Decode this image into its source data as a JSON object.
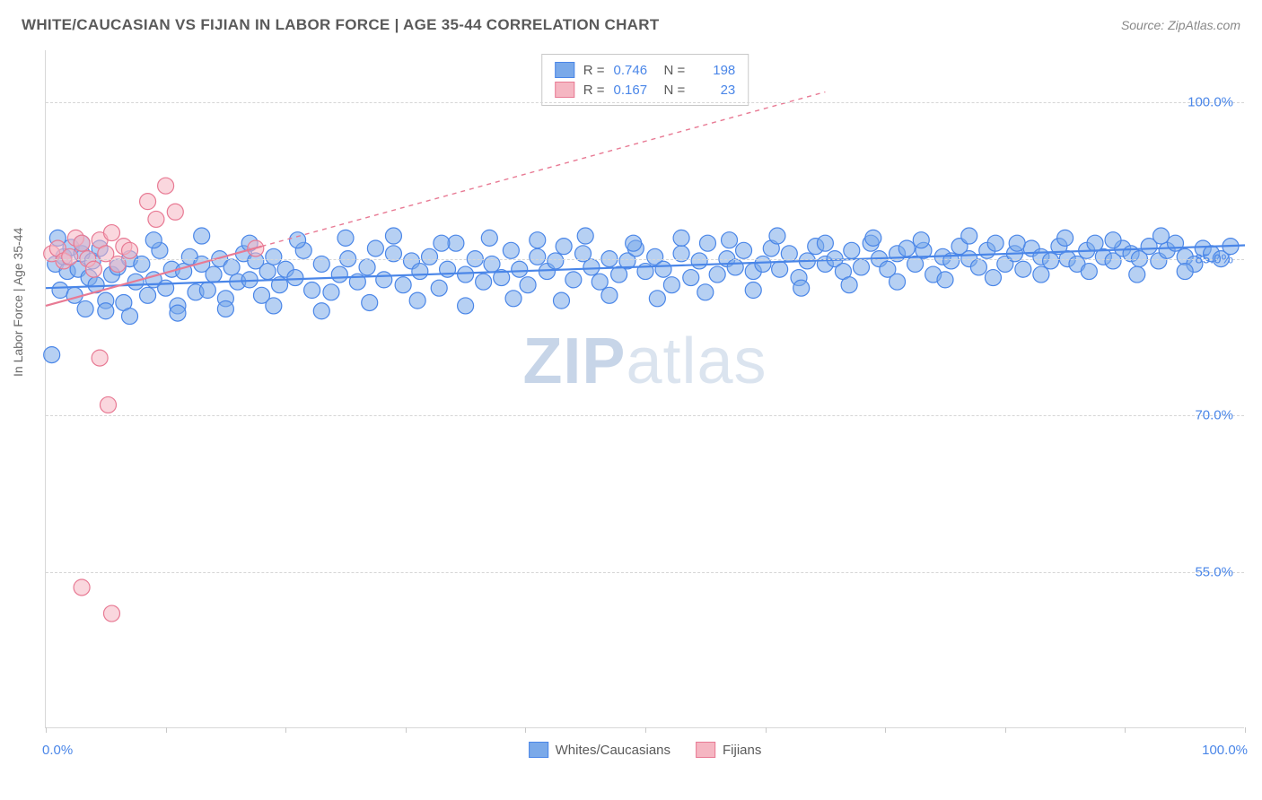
{
  "header": {
    "title": "WHITE/CAUCASIAN VS FIJIAN IN LABOR FORCE | AGE 35-44 CORRELATION CHART",
    "source": "Source: ZipAtlas.com"
  },
  "chart": {
    "type": "scatter",
    "ylabel": "In Labor Force | Age 35-44",
    "xlim": [
      0,
      100
    ],
    "ylim": [
      40,
      105
    ],
    "yticks": [
      {
        "v": 55.0,
        "label": "55.0%"
      },
      {
        "v": 70.0,
        "label": "70.0%"
      },
      {
        "v": 85.0,
        "label": "85.0%"
      },
      {
        "v": 100.0,
        "label": "100.0%"
      }
    ],
    "xtick_positions": [
      0,
      10,
      20,
      30,
      40,
      50,
      60,
      70,
      80,
      90,
      100
    ],
    "xtick_labels": {
      "left": "0.0%",
      "right": "100.0%"
    },
    "grid_color": "#d6d6d6",
    "background_color": "#ffffff",
    "marker_radius": 9,
    "marker_opacity": 0.55,
    "line_width": 2.2,
    "dash_pattern": "5,5",
    "watermark": {
      "bold": "ZIP",
      "rest": "atlas"
    },
    "series": [
      {
        "name": "Whites/Caucasians",
        "color": "#7aa9e9",
        "stroke": "#4a86e8",
        "r": 0.746,
        "n": 198,
        "trend": {
          "x1": 0,
          "y1": 82.2,
          "x2": 100,
          "y2": 86.3
        },
        "points": [
          [
            0.5,
            75.8
          ],
          [
            0.8,
            84.5
          ],
          [
            1.2,
            82.0
          ],
          [
            1.5,
            85.2
          ],
          [
            1.8,
            83.8
          ],
          [
            2.1,
            86.1
          ],
          [
            2.4,
            81.5
          ],
          [
            2.7,
            84.0
          ],
          [
            3.0,
            85.5
          ],
          [
            3.3,
            80.2
          ],
          [
            3.6,
            83.2
          ],
          [
            3.9,
            84.8
          ],
          [
            4.2,
            82.5
          ],
          [
            4.5,
            86.0
          ],
          [
            5.0,
            81.0
          ],
          [
            5.5,
            83.5
          ],
          [
            6.0,
            84.2
          ],
          [
            6.5,
            80.8
          ],
          [
            7.0,
            85.0
          ],
          [
            7.5,
            82.8
          ],
          [
            8.0,
            84.5
          ],
          [
            8.5,
            81.5
          ],
          [
            9.0,
            83.0
          ],
          [
            9.5,
            85.8
          ],
          [
            10.0,
            82.2
          ],
          [
            10.5,
            84.0
          ],
          [
            11.0,
            80.5
          ],
          [
            11.5,
            83.8
          ],
          [
            12.0,
            85.2
          ],
          [
            12.5,
            81.8
          ],
          [
            13.0,
            84.5
          ],
          [
            13.5,
            82.0
          ],
          [
            14.0,
            83.5
          ],
          [
            14.5,
            85.0
          ],
          [
            15.0,
            81.2
          ],
          [
            15.5,
            84.2
          ],
          [
            16.0,
            82.8
          ],
          [
            16.5,
            85.5
          ],
          [
            17.0,
            83.0
          ],
          [
            17.5,
            84.8
          ],
          [
            18.0,
            81.5
          ],
          [
            18.5,
            83.8
          ],
          [
            19.0,
            85.2
          ],
          [
            19.5,
            82.5
          ],
          [
            20.0,
            84.0
          ],
          [
            20.8,
            83.2
          ],
          [
            21.5,
            85.8
          ],
          [
            22.2,
            82.0
          ],
          [
            23.0,
            84.5
          ],
          [
            23.8,
            81.8
          ],
          [
            24.5,
            83.5
          ],
          [
            25.2,
            85.0
          ],
          [
            26.0,
            82.8
          ],
          [
            26.8,
            84.2
          ],
          [
            27.5,
            86.0
          ],
          [
            28.2,
            83.0
          ],
          [
            29.0,
            85.5
          ],
          [
            29.8,
            82.5
          ],
          [
            30.5,
            84.8
          ],
          [
            31.2,
            83.8
          ],
          [
            32.0,
            85.2
          ],
          [
            32.8,
            82.2
          ],
          [
            33.5,
            84.0
          ],
          [
            34.2,
            86.5
          ],
          [
            35.0,
            83.5
          ],
          [
            35.8,
            85.0
          ],
          [
            36.5,
            82.8
          ],
          [
            37.2,
            84.5
          ],
          [
            38.0,
            83.2
          ],
          [
            38.8,
            85.8
          ],
          [
            39.5,
            84.0
          ],
          [
            40.2,
            82.5
          ],
          [
            41.0,
            85.2
          ],
          [
            41.8,
            83.8
          ],
          [
            42.5,
            84.8
          ],
          [
            43.2,
            86.2
          ],
          [
            44.0,
            83.0
          ],
          [
            44.8,
            85.5
          ],
          [
            45.5,
            84.2
          ],
          [
            46.2,
            82.8
          ],
          [
            47.0,
            85.0
          ],
          [
            47.8,
            83.5
          ],
          [
            48.5,
            84.8
          ],
          [
            49.2,
            86.0
          ],
          [
            50.0,
            83.8
          ],
          [
            50.8,
            85.2
          ],
          [
            51.5,
            84.0
          ],
          [
            52.2,
            82.5
          ],
          [
            53.0,
            85.5
          ],
          [
            53.8,
            83.2
          ],
          [
            54.5,
            84.8
          ],
          [
            55.2,
            86.5
          ],
          [
            56.0,
            83.5
          ],
          [
            56.8,
            85.0
          ],
          [
            57.5,
            84.2
          ],
          [
            58.2,
            85.8
          ],
          [
            59.0,
            83.8
          ],
          [
            59.8,
            84.5
          ],
          [
            60.5,
            86.0
          ],
          [
            61.2,
            84.0
          ],
          [
            62.0,
            85.5
          ],
          [
            62.8,
            83.2
          ],
          [
            63.5,
            84.8
          ],
          [
            64.2,
            86.2
          ],
          [
            65.0,
            84.5
          ],
          [
            65.8,
            85.0
          ],
          [
            66.5,
            83.8
          ],
          [
            67.2,
            85.8
          ],
          [
            68.0,
            84.2
          ],
          [
            68.8,
            86.5
          ],
          [
            69.5,
            85.0
          ],
          [
            70.2,
            84.0
          ],
          [
            71.0,
            85.5
          ],
          [
            71.8,
            86.0
          ],
          [
            72.5,
            84.5
          ],
          [
            73.2,
            85.8
          ],
          [
            74.0,
            83.5
          ],
          [
            74.8,
            85.2
          ],
          [
            75.5,
            84.8
          ],
          [
            76.2,
            86.2
          ],
          [
            77.0,
            85.0
          ],
          [
            77.8,
            84.2
          ],
          [
            78.5,
            85.8
          ],
          [
            79.2,
            86.5
          ],
          [
            80.0,
            84.5
          ],
          [
            80.8,
            85.5
          ],
          [
            81.5,
            84.0
          ],
          [
            82.2,
            86.0
          ],
          [
            83.0,
            85.2
          ],
          [
            83.8,
            84.8
          ],
          [
            84.5,
            86.2
          ],
          [
            85.2,
            85.0
          ],
          [
            86.0,
            84.5
          ],
          [
            86.8,
            85.8
          ],
          [
            87.5,
            86.5
          ],
          [
            88.2,
            85.2
          ],
          [
            89.0,
            84.8
          ],
          [
            89.8,
            86.0
          ],
          [
            90.5,
            85.5
          ],
          [
            91.2,
            85.0
          ],
          [
            92.0,
            86.2
          ],
          [
            92.8,
            84.8
          ],
          [
            93.5,
            85.8
          ],
          [
            94.2,
            86.5
          ],
          [
            95.0,
            85.2
          ],
          [
            95.8,
            84.5
          ],
          [
            96.5,
            86.0
          ],
          [
            97.2,
            85.5
          ],
          [
            98.0,
            85.0
          ],
          [
            98.8,
            86.2
          ],
          [
            1.0,
            87.0
          ],
          [
            3.0,
            86.5
          ],
          [
            5.0,
            80.0
          ],
          [
            7.0,
            79.5
          ],
          [
            9.0,
            86.8
          ],
          [
            11.0,
            79.8
          ],
          [
            13.0,
            87.2
          ],
          [
            15.0,
            80.2
          ],
          [
            17.0,
            86.5
          ],
          [
            19.0,
            80.5
          ],
          [
            21.0,
            86.8
          ],
          [
            23.0,
            80.0
          ],
          [
            25.0,
            87.0
          ],
          [
            27.0,
            80.8
          ],
          [
            29.0,
            87.2
          ],
          [
            31.0,
            81.0
          ],
          [
            33.0,
            86.5
          ],
          [
            35.0,
            80.5
          ],
          [
            37.0,
            87.0
          ],
          [
            39.0,
            81.2
          ],
          [
            41.0,
            86.8
          ],
          [
            43.0,
            81.0
          ],
          [
            45.0,
            87.2
          ],
          [
            47.0,
            81.5
          ],
          [
            49.0,
            86.5
          ],
          [
            51.0,
            81.2
          ],
          [
            53.0,
            87.0
          ],
          [
            55.0,
            81.8
          ],
          [
            57.0,
            86.8
          ],
          [
            59.0,
            82.0
          ],
          [
            61.0,
            87.2
          ],
          [
            63.0,
            82.2
          ],
          [
            65.0,
            86.5
          ],
          [
            67.0,
            82.5
          ],
          [
            69.0,
            87.0
          ],
          [
            71.0,
            82.8
          ],
          [
            73.0,
            86.8
          ],
          [
            75.0,
            83.0
          ],
          [
            77.0,
            87.2
          ],
          [
            79.0,
            83.2
          ],
          [
            81.0,
            86.5
          ],
          [
            83.0,
            83.5
          ],
          [
            85.0,
            87.0
          ],
          [
            87.0,
            83.8
          ],
          [
            89.0,
            86.8
          ],
          [
            91.0,
            83.5
          ],
          [
            93.0,
            87.2
          ],
          [
            95.0,
            83.8
          ]
        ]
      },
      {
        "name": "Fijians",
        "color": "#f5b6c2",
        "stroke": "#e87a94",
        "r": 0.167,
        "n": 23,
        "trend": {
          "x1": 0,
          "y1": 80.5,
          "x2": 18,
          "y2": 86.2
        },
        "trend_dash": {
          "x1": 18,
          "y1": 86.2,
          "x2": 65,
          "y2": 101.0
        },
        "points": [
          [
            0.5,
            85.5
          ],
          [
            1.0,
            86.0
          ],
          [
            1.5,
            84.8
          ],
          [
            2.0,
            85.2
          ],
          [
            2.5,
            87.0
          ],
          [
            3.0,
            86.5
          ],
          [
            3.5,
            85.0
          ],
          [
            4.0,
            84.0
          ],
          [
            4.5,
            86.8
          ],
          [
            5.0,
            85.5
          ],
          [
            5.5,
            87.5
          ],
          [
            6.0,
            84.5
          ],
          [
            6.5,
            86.2
          ],
          [
            7.0,
            85.8
          ],
          [
            8.5,
            90.5
          ],
          [
            9.2,
            88.8
          ],
          [
            10.0,
            92.0
          ],
          [
            10.8,
            89.5
          ],
          [
            17.5,
            86.0
          ],
          [
            4.5,
            75.5
          ],
          [
            5.2,
            71.0
          ],
          [
            3.0,
            53.5
          ],
          [
            5.5,
            51.0
          ]
        ]
      }
    ],
    "stats_box": {
      "r_label": "R =",
      "n_label": "N ="
    },
    "bottom_legend": [
      {
        "label": "Whites/Caucasians",
        "color": "#7aa9e9",
        "stroke": "#4a86e8"
      },
      {
        "label": "Fijians",
        "color": "#f5b6c2",
        "stroke": "#e87a94"
      }
    ]
  }
}
